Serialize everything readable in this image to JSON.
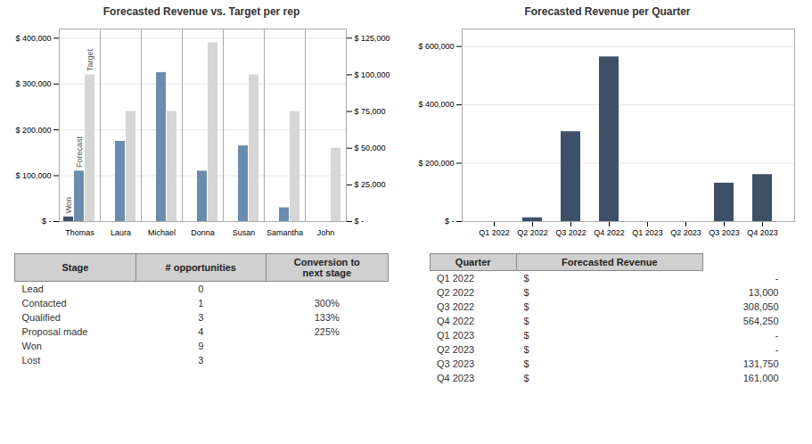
{
  "chart_data": [
    {
      "type": "bar",
      "title": "Forecasted Revenue vs. Target per rep",
      "categories": [
        "Thomas",
        "Laura",
        "Michael",
        "Donna",
        "Susan",
        "Samantha",
        "John"
      ],
      "series": [
        {
          "name": "Won",
          "color": "#3d5068",
          "values": [
            10000,
            0,
            0,
            0,
            0,
            0,
            0
          ]
        },
        {
          "name": "Forecast",
          "color": "#6b8cae",
          "values": [
            110000,
            175000,
            325000,
            110000,
            165000,
            30000,
            0
          ]
        },
        {
          "name": "Target",
          "color": "#d6d6d6",
          "values": [
            320000,
            240000,
            240000,
            390000,
            320000,
            240000,
            160000
          ]
        }
      ],
      "ylim": [
        0,
        420000
      ],
      "yticks": [
        {
          "value": 0,
          "label": "$ -"
        },
        {
          "value": 100000,
          "label": "$ 100,000"
        },
        {
          "value": 200000,
          "label": "$ 200,000"
        },
        {
          "value": 300000,
          "label": "$ 300,000"
        },
        {
          "value": 400000,
          "label": "$ 400,000"
        }
      ],
      "y2lim": [
        0,
        131250
      ],
      "y2ticks": [
        {
          "value": 0,
          "label": "$ -"
        },
        {
          "value": 25000,
          "label": "$ 25,000"
        },
        {
          "value": 50000,
          "label": "$ 50,000"
        },
        {
          "value": 75000,
          "label": "$ 75,000"
        },
        {
          "value": 100000,
          "label": "$ 100,000"
        },
        {
          "value": 125000,
          "label": "$ 125,000"
        }
      ],
      "grid": true
    },
    {
      "type": "bar",
      "title": "Forecasted Revenue per Quarter",
      "categories": [
        "Q1 2022",
        "Q2 2022",
        "Q3 2022",
        "Q4 2022",
        "Q1 2023",
        "Q2 2023",
        "Q3 2023",
        "Q4 2023"
      ],
      "values": [
        0,
        13000,
        308050,
        564250,
        0,
        0,
        131750,
        161000
      ],
      "color": "#3d5068",
      "ylim": [
        0,
        660000
      ],
      "yticks": [
        {
          "value": 0,
          "label": "$ -"
        },
        {
          "value": 200000,
          "label": "$ 200,000"
        },
        {
          "value": 400000,
          "label": "$ 400,000"
        },
        {
          "value": 600000,
          "label": "$ 600,000"
        }
      ],
      "grid": true
    },
    {
      "type": "table",
      "headers": [
        "Stage",
        "# opportunities",
        "Conversion to\nnext stage"
      ],
      "rows": [
        [
          "Lead",
          "0",
          null
        ],
        [
          "Contacted",
          "1",
          "300%"
        ],
        [
          "Qualified",
          "3",
          "133%"
        ],
        [
          "Proposal made",
          "4",
          "225%"
        ],
        [
          "Won",
          "9",
          null
        ],
        [
          "Lost",
          "3",
          null
        ]
      ]
    },
    {
      "type": "table",
      "headers": [
        "Quarter",
        "Forecasted Revenue"
      ],
      "rows": [
        [
          "Q1 2022",
          "$",
          "-"
        ],
        [
          "Q2 2022",
          "$",
          "13,000"
        ],
        [
          "Q3 2022",
          "$",
          "308,050"
        ],
        [
          "Q4 2022",
          "$",
          "564,250"
        ],
        [
          "Q1 2023",
          "$",
          "-"
        ],
        [
          "Q2 2023",
          "$",
          "-"
        ],
        [
          "Q3 2023",
          "$",
          "131,750"
        ],
        [
          "Q4 2023",
          "$",
          "161,000"
        ]
      ]
    }
  ]
}
